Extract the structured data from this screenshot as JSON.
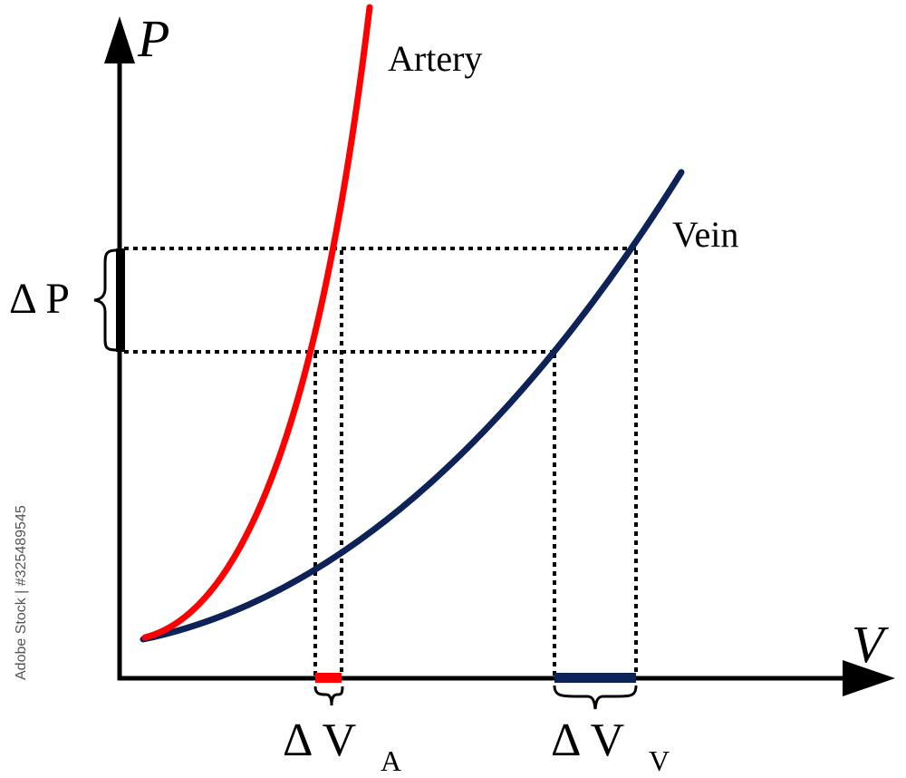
{
  "diagram": {
    "axes": {
      "y_label": "P",
      "x_label": "V"
    },
    "curves": {
      "artery": {
        "label": "Artery",
        "color": "#ff0000"
      },
      "vein": {
        "label": "Vein",
        "color": "#0d2257"
      }
    },
    "annotations": {
      "delta_p": "Δ P",
      "delta_va_main": "Δ V",
      "delta_va_sub": "A",
      "delta_vv_main": "Δ V",
      "delta_vv_sub": "V"
    },
    "colors": {
      "axis": "#000000",
      "guide_lines": "#000000",
      "delta_p_bar": "#000000",
      "delta_va_bar": "#ff0000",
      "delta_vv_bar": "#0d2257"
    }
  },
  "watermark": {
    "side_text": "Adobe Stock | #325489545"
  }
}
